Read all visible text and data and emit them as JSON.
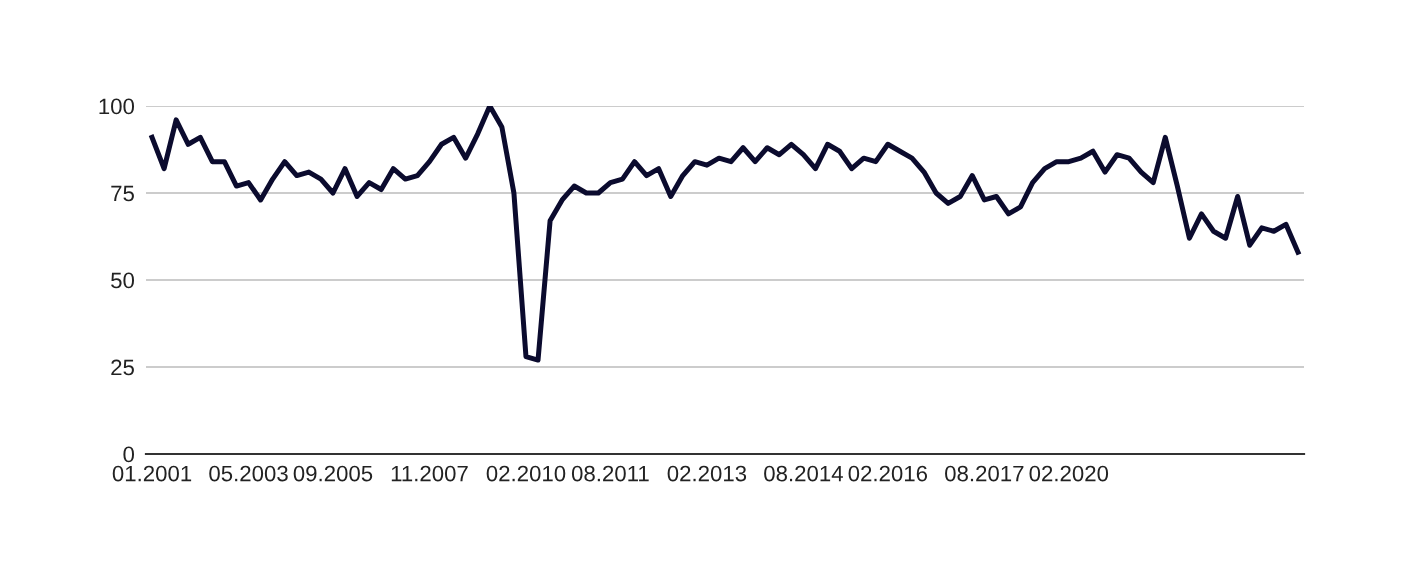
{
  "chart_data": {
    "type": "line",
    "categories": [
      "01.2001",
      null,
      null,
      null,
      null,
      null,
      null,
      null,
      "05.2003",
      null,
      null,
      null,
      null,
      null,
      null,
      "09.2005",
      null,
      null,
      null,
      null,
      null,
      null,
      null,
      "11.2007",
      null,
      null,
      null,
      null,
      null,
      null,
      null,
      "02.2010",
      null,
      null,
      null,
      null,
      null,
      null,
      "08.2011",
      null,
      null,
      null,
      null,
      null,
      null,
      null,
      "02.2013",
      null,
      null,
      null,
      null,
      null,
      null,
      null,
      "08.2014",
      null,
      null,
      null,
      null,
      null,
      null,
      "02.2016",
      null,
      null,
      null,
      null,
      null,
      null,
      null,
      "08.2017",
      null,
      null,
      null,
      null,
      null,
      null,
      "02.2020",
      null,
      null,
      null,
      null,
      null,
      null,
      null,
      null,
      null,
      null,
      null,
      null,
      null,
      null,
      null,
      null,
      null,
      null,
      null
    ],
    "series": [
      {
        "color": "#0b0b2e",
        "values": [
          91,
          82,
          96,
          89,
          91,
          84,
          84,
          77,
          78,
          73,
          79,
          84,
          80,
          81,
          79,
          75,
          82,
          74,
          78,
          76,
          82,
          79,
          80,
          84,
          89,
          91,
          85,
          92,
          100,
          94,
          75,
          28,
          27,
          67,
          73,
          77,
          75,
          75,
          78,
          79,
          84,
          80,
          82,
          74,
          80,
          84,
          83,
          85,
          84,
          88,
          84,
          88,
          86,
          89,
          86,
          82,
          89,
          87,
          82,
          85,
          84,
          89,
          87,
          85,
          81,
          75,
          72,
          74,
          80,
          73,
          74,
          69,
          71,
          78,
          82,
          84,
          84,
          85,
          87,
          81,
          86,
          85,
          81,
          78,
          91,
          77,
          62,
          69,
          64,
          62,
          74,
          60,
          65,
          64,
          66,
          58
        ]
      }
    ],
    "ylim": [
      0,
      100
    ],
    "yticks": [
      0,
      25,
      50,
      75,
      100
    ],
    "grid": "y",
    "marker": "none",
    "line_style": "solid"
  }
}
